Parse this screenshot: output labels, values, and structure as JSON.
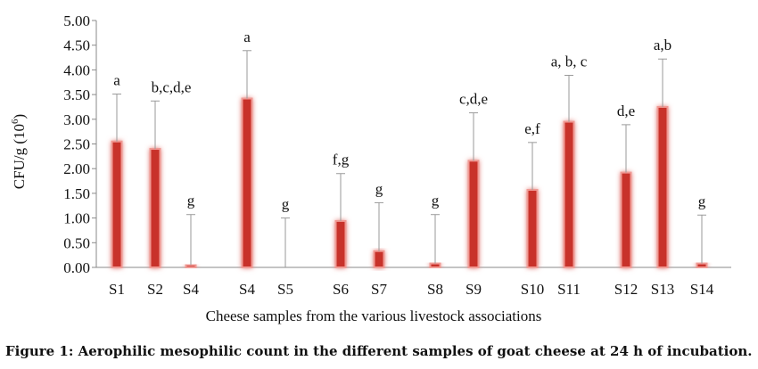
{
  "caption": "Figure 1: Aerophilic mesophilic count in the different samples of goat cheese at 24 h of incubation.",
  "chart_data": {
    "type": "bar",
    "title": "",
    "xlabel": "Cheese samples from the various livestock associations",
    "ylabel_main": "CFU/g (10",
    "ylabel_sup": "6",
    "ylabel_close": ")",
    "ylim": [
      0,
      5
    ],
    "yticks": [
      "0.00",
      "0.50",
      "1.00",
      "1.50",
      "2.00",
      "2.50",
      "3.00",
      "3.50",
      "4.00",
      "4.50",
      "5.00"
    ],
    "grid": false,
    "bar_color": "#c8302c",
    "categories": [
      "S1",
      "S2",
      "S4",
      "S4",
      "S5",
      "S6",
      "S7",
      "S8",
      "S9",
      "S10",
      "S11",
      "S12",
      "S13",
      "S14"
    ],
    "values": [
      2.55,
      2.4,
      0.05,
      3.42,
      0.0,
      0.94,
      0.33,
      0.08,
      2.16,
      1.57,
      2.95,
      1.92,
      3.25,
      0.08
    ],
    "error_upper": [
      3.51,
      3.37,
      1.07,
      4.39,
      1.0,
      1.9,
      1.31,
      1.07,
      3.13,
      2.53,
      3.89,
      2.89,
      4.22,
      1.06
    ],
    "letters": [
      "a",
      "b,c,d,e",
      "g",
      "a",
      "g",
      "f,g",
      "g",
      "g",
      "c,d,e",
      "e,f",
      "a, b, c",
      "d,e",
      "a,b",
      "g"
    ]
  }
}
